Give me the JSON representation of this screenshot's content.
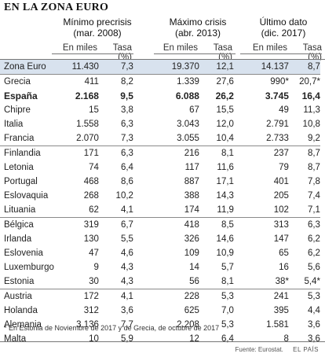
{
  "title": "EN LA ZONA EURO",
  "columns": [
    {
      "line1": "Mínimo precrisis",
      "line2": "(mar. 2008)"
    },
    {
      "line1": "Máximo crisis",
      "line2": "(abr. 2013)"
    },
    {
      "line1": "Último dato",
      "line2": "(dic. 2017)"
    }
  ],
  "sub": {
    "miles": "En miles",
    "tasa": "Tasa (%)"
  },
  "rows": [
    {
      "country": "Zona Euro",
      "m1": "11.430",
      "t1": "7,3",
      "m2": "19.370",
      "t2": "12,1",
      "m3": "14.137",
      "t3": "8,7"
    },
    {
      "country": "Grecia",
      "m1": "411",
      "t1": "8,2",
      "m2": "1.339",
      "t2": "27,6",
      "m3": "990*",
      "t3": "20,7*"
    },
    {
      "country": "España",
      "m1": "2.168",
      "t1": "9,5",
      "m2": "6.088",
      "t2": "26,2",
      "m3": "3.745",
      "t3": "16,4"
    },
    {
      "country": "Chipre",
      "m1": "15",
      "t1": "3,8",
      "m2": "67",
      "t2": "15,5",
      "m3": "49",
      "t3": "11,3"
    },
    {
      "country": "Italia",
      "m1": "1.558",
      "t1": "6,3",
      "m2": "3.043",
      "t2": "12,0",
      "m3": "2.791",
      "t3": "10,8"
    },
    {
      "country": "Francia",
      "m1": "2.070",
      "t1": "7,3",
      "m2": "3.055",
      "t2": "10,4",
      "m3": "2.733",
      "t3": "9,2"
    },
    {
      "country": "Finlandia",
      "m1": "171",
      "t1": "6,3",
      "m2": "216",
      "t2": "8,1",
      "m3": "237",
      "t3": "8,7"
    },
    {
      "country": "Letonia",
      "m1": "74",
      "t1": "6,4",
      "m2": "117",
      "t2": "11,6",
      "m3": "79",
      "t3": "8,7"
    },
    {
      "country": "Portugal",
      "m1": "468",
      "t1": "8,6",
      "m2": "887",
      "t2": "17,1",
      "m3": "401",
      "t3": "7,8"
    },
    {
      "country": "Eslovaquia",
      "m1": "268",
      "t1": "10,2",
      "m2": "388",
      "t2": "14,3",
      "m3": "205",
      "t3": "7,4"
    },
    {
      "country": "Lituania",
      "m1": "62",
      "t1": "4,1",
      "m2": "174",
      "t2": "11,9",
      "m3": "102",
      "t3": "7,1"
    },
    {
      "country": "Bélgica",
      "m1": "319",
      "t1": "6,7",
      "m2": "418",
      "t2": "8,5",
      "m3": "313",
      "t3": "6,3"
    },
    {
      "country": "Irlanda",
      "m1": "130",
      "t1": "5,5",
      "m2": "326",
      "t2": "14,6",
      "m3": "147",
      "t3": "6,2"
    },
    {
      "country": "Eslovenia",
      "m1": "47",
      "t1": "4,6",
      "m2": "109",
      "t2": "10,9",
      "m3": "65",
      "t3": "6,2"
    },
    {
      "country": "Luxemburgo",
      "m1": "9",
      "t1": "4,3",
      "m2": "14",
      "t2": "5,7",
      "m3": "16",
      "t3": "5,6"
    },
    {
      "country": "Estonia",
      "m1": "30",
      "t1": "4,3",
      "m2": "56",
      "t2": "8,1",
      "m3": "38*",
      "t3": "5,4*"
    },
    {
      "country": "Austria",
      "m1": "172",
      "t1": "4,1",
      "m2": "228",
      "t2": "5,3",
      "m3": "241",
      "t3": "5,3"
    },
    {
      "country": "Holanda",
      "m1": "312",
      "t1": "3,6",
      "m2": "625",
      "t2": "7,0",
      "m3": "395",
      "t3": "4,4"
    },
    {
      "country": "Alemania",
      "m1": "3.136",
      "t1": "7,7",
      "m2": "2.208",
      "t2": "5,3",
      "m3": "1.581",
      "t3": "3,6"
    },
    {
      "country": "Malta",
      "m1": "10",
      "t1": "5,9",
      "m2": "12",
      "t2": "6,4",
      "m3": "8",
      "t3": "3,6"
    }
  ],
  "note": "* En Estonia de Noviembre de 2017 y de Grecia, de octubre de 2017",
  "source": "Fuente: Eurostat.",
  "brand": "EL PAÍS",
  "colors": {
    "highlight_row": "#d8e2ee"
  }
}
